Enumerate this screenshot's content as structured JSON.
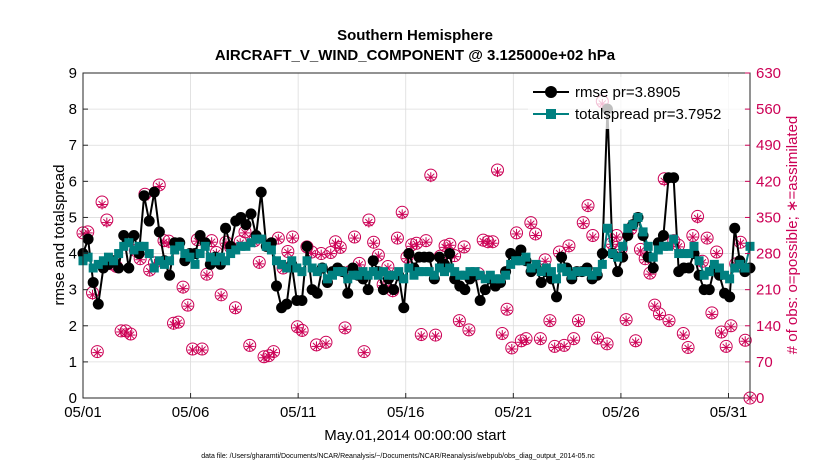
{
  "chart_data": {
    "type": "line",
    "title": "Southern Hemisphere",
    "subtitle": "AIRCRAFT_V_WIND_COMPONENT @ 3.125000e+02 hPa",
    "xlabel": "May.01,2014 00:00:00 start",
    "ylabel": "rmse and totalspread",
    "y2label": "# of obs: o=possible; ∗=assimilated",
    "footnote": "data file: /Users/gharamti/Documents/NCAR/Reanalysis/~/Documents/NCAR/Reanalysis/webpub/obs_diag_output_2014-05.nc",
    "xlim": [
      1,
      32
    ],
    "ylim": [
      0,
      9
    ],
    "y2lim": [
      0,
      630
    ],
    "grid": true,
    "legend_position": "top-right",
    "x_ticks": [
      1,
      6,
      11,
      16,
      21,
      26,
      31
    ],
    "x_tick_labels": [
      "05/01",
      "05/06",
      "05/11",
      "05/16",
      "05/21",
      "05/26",
      "05/31"
    ],
    "y_ticks": [
      "0",
      "1",
      "2",
      "3",
      "4",
      "5",
      "6",
      "7",
      "8",
      "9"
    ],
    "y2_ticks": [
      "0",
      "70",
      "140",
      "210",
      "280",
      "350",
      "420",
      "490",
      "560",
      "630"
    ],
    "colors": {
      "rmse": "#000000",
      "totalspread": "#008080",
      "obs": "#cc0055"
    },
    "series": [
      {
        "name": "rmse pr=3.8905",
        "values": [
          4.0,
          4.4,
          3.2,
          2.6,
          3.6,
          3.7,
          3.8,
          3.6,
          4.5,
          3.6,
          4.5,
          4.0,
          5.6,
          4.9,
          5.7,
          4.6,
          3.8,
          3.4,
          4.3,
          4.3,
          3.8,
          4.0,
          4.0,
          4.5,
          4.3,
          3.7,
          3.9,
          3.7,
          4.7,
          4.2,
          4.9,
          5.0,
          4.8,
          5.1,
          4.5,
          5.7,
          4.2,
          4.3,
          3.1,
          2.5,
          2.6,
          3.7,
          2.7,
          2.7,
          4.2,
          3.0,
          2.9,
          3.6,
          3.2,
          3.5,
          3.6,
          3.5,
          2.9,
          3.6,
          3.4,
          3.3,
          3.0,
          3.8,
          3.5,
          3.0,
          3.3,
          3.0,
          3.4,
          2.5,
          4.0,
          3.6,
          3.9,
          3.9,
          3.9,
          3.3,
          3.9,
          3.7,
          4.0,
          3.3,
          3.1,
          3.0,
          3.3,
          3.4,
          2.7,
          3.0,
          3.3,
          3.1,
          3.2,
          3.5,
          4.0,
          3.9,
          4.1,
          3.8,
          3.5,
          3.6,
          3.2,
          3.5,
          3.3,
          2.8,
          3.9,
          3.6,
          3.3,
          3.5,
          3.5,
          3.6,
          3.3,
          3.4,
          4.0,
          8.0,
          4.0,
          3.5,
          3.9,
          4.5,
          4.8,
          5.0,
          4.5,
          3.9,
          3.6,
          4.3,
          4.5,
          6.1,
          6.1,
          3.5,
          3.6,
          3.6,
          4.0,
          3.4,
          3.0,
          3.0,
          3.6,
          3.4,
          2.9,
          2.8,
          4.7,
          3.8,
          3.5,
          3.6
        ]
      },
      {
        "name": "totalspread pr=3.7952",
        "values": [
          3.8,
          3.9,
          3.6,
          3.7,
          3.8,
          3.9,
          3.8,
          4.0,
          4.2,
          4.3,
          4.1,
          4.2,
          4.2,
          4.0,
          3.6,
          3.8,
          3.7,
          3.8,
          4.1,
          4.2,
          4.0,
          3.9,
          3.7,
          4.0,
          4.2,
          3.9,
          3.8,
          3.9,
          3.8,
          4.0,
          4.1,
          4.2,
          4.2,
          4.3,
          4.4,
          4.4,
          4.2,
          4.1,
          3.8,
          3.7,
          3.6,
          3.8,
          3.6,
          3.5,
          3.8,
          3.6,
          3.5,
          3.6,
          3.3,
          3.4,
          3.5,
          3.5,
          3.3,
          3.4,
          3.4,
          3.5,
          3.4,
          3.5,
          3.4,
          3.5,
          3.4,
          3.4,
          3.5,
          3.3,
          3.6,
          3.4,
          3.5,
          3.5,
          3.5,
          3.4,
          3.6,
          3.5,
          3.6,
          3.5,
          3.4,
          3.4,
          3.5,
          3.5,
          3.4,
          3.3,
          3.4,
          3.3,
          3.3,
          3.4,
          3.7,
          3.8,
          3.8,
          3.9,
          3.6,
          3.7,
          3.5,
          3.6,
          3.5,
          3.3,
          3.6,
          3.5,
          3.4,
          3.5,
          3.5,
          3.5,
          3.4,
          3.5,
          3.7,
          4.7,
          4.0,
          3.9,
          4.2,
          4.7,
          4.8,
          5.0,
          4.6,
          4.2,
          3.9,
          4.1,
          4.2,
          4.2,
          4.4,
          4.0,
          4.0,
          4.0,
          4.2,
          3.8,
          3.4,
          3.5,
          3.7,
          3.6,
          3.4,
          3.3,
          3.6,
          3.7,
          3.6,
          4.2
        ]
      },
      {
        "name": "obs possible (right axis)",
        "values": [
          320,
          322,
          204,
          90,
          380,
          345,
          260,
          255,
          130,
          130,
          124,
          286,
          270,
          395,
          248,
          262,
          413,
          305,
          304,
          145,
          147,
          215,
          180,
          95,
          307,
          95,
          240,
          305,
          282,
          200,
          302,
          292,
          175,
          303,
          322,
          102,
          305,
          263,
          80,
          82,
          90,
          310,
          252,
          284,
          312,
          138,
          131,
          293,
          283,
          103,
          280,
          108,
          282,
          303,
          292,
          136,
          245,
          312,
          261,
          90,
          345,
          302,
          277,
          220,
          255,
          208,
          310,
          360,
          273,
          297,
          300,
          123,
          305,
          432,
          122,
          275,
          295,
          298,
          276,
          150,
          293,
          132,
          240,
          241,
          306,
          303,
          303,
          442,
          125,
          172,
          97,
          320,
          111,
          115,
          340,
          318,
          115,
          268,
          150,
          100,
          283,
          102,
          295,
          115,
          150,
          340,
          373,
          315,
          116,
          575,
          105,
          300,
          315,
          290,
          152,
          328,
          111,
          288,
          270,
          242,
          180,
          163,
          425,
          150,
          305,
          296,
          125,
          98,
          315,
          352,
          265,
          310,
          165,
          283,
          128,
          100,
          140,
          260,
          302,
          112,
          0
        ]
      },
      {
        "name": "obs assimilated (right axis)",
        "values": [
          318,
          320,
          200,
          88,
          375,
          340,
          258,
          252,
          128,
          128,
          122,
          283,
          268,
          390,
          245,
          260,
          410,
          302,
          300,
          142,
          145,
          212,
          178,
          93,
          304,
          93,
          238,
          302,
          280,
          198,
          300,
          290,
          172,
          300,
          320,
          100,
          302,
          260,
          78,
          80,
          88,
          308,
          250,
          282,
          310,
          136,
          128,
          290,
          280,
          100,
          278,
          105,
          280,
          300,
          290,
          133,
          243,
          310,
          258,
          88,
          340,
          300,
          275,
          218,
          252,
          205,
          308,
          356,
          270,
          294,
          298,
          120,
          302,
          428,
          120,
          272,
          292,
          296,
          274,
          148,
          290,
          130,
          238,
          238,
          303,
          300,
          300,
          438,
          122,
          170,
          95,
          318,
          108,
          112,
          337,
          315,
          112,
          265,
          148,
          98,
          280,
          100,
          292,
          112,
          148,
          338,
          370,
          312,
          114,
          570,
          103,
          298,
          312,
          288,
          150,
          325,
          108,
          285,
          268,
          240,
          178,
          160,
          420,
          148,
          302,
          293,
          122,
          96,
          312,
          348,
          262,
          308,
          162,
          280,
          126,
          98,
          138,
          258,
          300,
          110,
          0
        ]
      }
    ]
  }
}
